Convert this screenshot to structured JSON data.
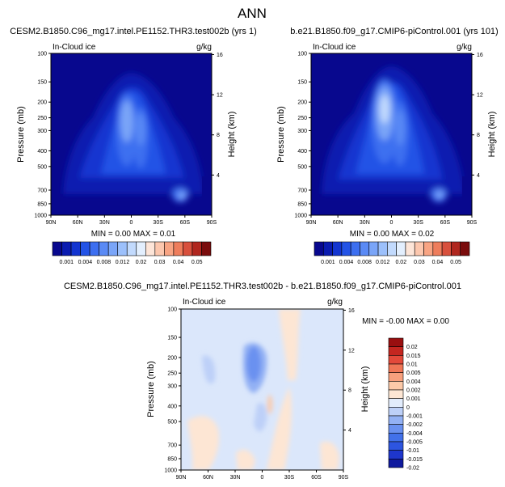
{
  "figure_title": "ANN",
  "colors": {
    "field_bar": [
      "#08088e",
      "#0a1bb0",
      "#1335d0",
      "#2353e6",
      "#3d6ff0",
      "#5a8af5",
      "#7aa5f8",
      "#9cc0fb",
      "#c2dafd",
      "#e3effe",
      "#fde5d8",
      "#fcc7ae",
      "#f8a483",
      "#ee7d5c",
      "#d8503d",
      "#b0271f",
      "#7a0c0c"
    ],
    "diff_bar": [
      "#0f1a9e",
      "#1e36cc",
      "#2d55e0",
      "#4271ea",
      "#6a91f0",
      "#93b1f4",
      "#bdd0f8",
      "#e2ecfc",
      "#fde6d4",
      "#fcc9a8",
      "#f8a07d",
      "#f07656",
      "#e3493a",
      "#c42620",
      "#9a0f10"
    ]
  },
  "chart_data": [
    {
      "type": "heatmap",
      "subtitle": "CESM2.B1850.C96_mg17.intel.PE1152.THR3.test002b (yrs 1)",
      "field_label": "In-Cloud ice",
      "units_label": "g/kg",
      "ylabel": "Pressure (mb)",
      "ylabel_right": "Height (km)",
      "x_ticks": [
        "90N",
        "60N",
        "30N",
        "0",
        "30S",
        "60S",
        "90S"
      ],
      "y_ticks": [
        "100",
        "150",
        "200",
        "250",
        "300",
        "400",
        "500",
        "700",
        "850",
        "1000"
      ],
      "y_ticks_right": [
        "16",
        "12",
        "8",
        "4"
      ],
      "min_max_text": "MIN =  0.00   MAX =  0.01",
      "colorbar_labels": [
        "0.001",
        "0.004",
        "0.008",
        "0.012",
        "0.02",
        "0.03",
        "0.04",
        "0.05"
      ]
    },
    {
      "type": "heatmap",
      "subtitle": "b.e21.B1850.f09_g17.CMIP6-piControl.001 (yrs 101)",
      "field_label": "In-Cloud ice",
      "units_label": "g/kg",
      "ylabel": "Pressure (mb)",
      "ylabel_right": "Height (km)",
      "x_ticks": [
        "90N",
        "60N",
        "30N",
        "0",
        "30S",
        "60S",
        "90S"
      ],
      "y_ticks": [
        "100",
        "150",
        "200",
        "250",
        "300",
        "400",
        "500",
        "700",
        "850",
        "1000"
      ],
      "y_ticks_right": [
        "16",
        "12",
        "8",
        "4"
      ],
      "min_max_text": "MIN =  0.00   MAX =  0.02",
      "colorbar_labels": [
        "0.001",
        "0.004",
        "0.008",
        "0.012",
        "0.02",
        "0.03",
        "0.04",
        "0.05"
      ]
    },
    {
      "type": "heatmap",
      "subtitle": "CESM2.B1850.C96_mg17.intel.PE1152.THR3.test002b - b.e21.B1850.f09_g17.CMIP6-piControl.001",
      "field_label": "In-Cloud ice",
      "units_label": "g/kg",
      "ylabel": "Pressure (mb)",
      "ylabel_right": "Height (km)",
      "x_ticks": [
        "90N",
        "60N",
        "30N",
        "0",
        "30S",
        "60S",
        "90S"
      ],
      "y_ticks": [
        "100",
        "150",
        "200",
        "250",
        "300",
        "400",
        "500",
        "700",
        "850",
        "1000"
      ],
      "y_ticks_right": [
        "16",
        "12",
        "8",
        "4"
      ],
      "min_max_text": "MIN = -0.00   MAX =  0.00",
      "colorbar_labels": [
        "0.02",
        "0.015",
        "0.01",
        "0.005",
        "0.004",
        "0.002",
        "0.001",
        "0",
        "-0.001",
        "-0.002",
        "-0.004",
        "-0.005",
        "-0.01",
        "-0.015",
        "-0.02"
      ]
    }
  ]
}
